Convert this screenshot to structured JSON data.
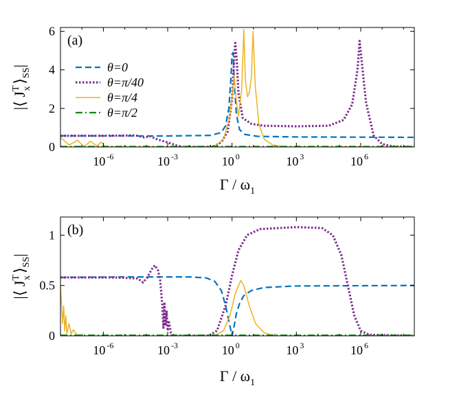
{
  "chart_data": [
    {
      "type": "line",
      "panel_label": "(a)",
      "xscale": "log",
      "xlim_log10": [
        -8,
        8.5
      ],
      "ylim": [
        0,
        6.2
      ],
      "x_ticks": [
        {
          "base": "10",
          "exp": "-6",
          "pos": -6
        },
        {
          "base": "10",
          "exp": "-3",
          "pos": -3
        },
        {
          "base": "10",
          "exp": "0",
          "pos": 0
        },
        {
          "base": "10",
          "exp": "3",
          "pos": 3
        },
        {
          "base": "10",
          "exp": "6",
          "pos": 6
        }
      ],
      "y_ticks": [
        {
          "label": "0",
          "v": 0
        },
        {
          "label": "2",
          "v": 2
        },
        {
          "label": "4",
          "v": 4
        },
        {
          "label": "6",
          "v": 6
        }
      ],
      "xlabel": {
        "main": "Γ / ω",
        "sub": "1"
      },
      "ylabel": {
        "left": "|⟨ J",
        "sup": "T",
        "sub": "x",
        "right": "⟩",
        "sub2": "SS",
        "end": "|"
      },
      "legend": [
        {
          "label": "θ=0",
          "color": "#0072BD",
          "style": "dashed"
        },
        {
          "label": "θ=π/40",
          "color": "#7E2F8E",
          "style": "dotted"
        },
        {
          "label": "θ=π/4",
          "color": "#EDB120",
          "style": "solid"
        },
        {
          "label": "θ=π/2",
          "color": "#0F8A0F",
          "style": "dashdot"
        }
      ],
      "series": [
        {
          "name": "θ=0",
          "color": "#0072BD",
          "dash": "9,5",
          "width": 2.2,
          "points": [
            [
              -8,
              0.58
            ],
            [
              -3,
              0.57
            ],
            [
              -1,
              0.6
            ],
            [
              -0.5,
              0.75
            ],
            [
              -0.3,
              1.1
            ],
            [
              -0.15,
              2.0
            ],
            [
              -0.05,
              3.6
            ],
            [
              0,
              4.8
            ],
            [
              0.05,
              4.9
            ],
            [
              0.1,
              3.5
            ],
            [
              0.2,
              1.7
            ],
            [
              0.35,
              0.9
            ],
            [
              0.6,
              0.65
            ],
            [
              1.2,
              0.55
            ],
            [
              3,
              0.52
            ],
            [
              8.5,
              0.5
            ]
          ]
        },
        {
          "name": "θ=π/40",
          "color": "#7E2F8E",
          "dash": "2.5,2.5",
          "width": 3.2,
          "points": [
            [
              -8,
              0.58
            ],
            [
              -6,
              0.58
            ],
            [
              -4.5,
              0.6
            ],
            [
              -4.1,
              0.5
            ],
            [
              -3.8,
              0.55
            ],
            [
              -3.5,
              0.4
            ],
            [
              -3.2,
              0.3
            ],
            [
              -2.9,
              0.2
            ],
            [
              -2.6,
              0.08
            ],
            [
              -2.3,
              0
            ],
            [
              -1.2,
              0
            ],
            [
              -0.8,
              0.05
            ],
            [
              -0.5,
              0.25
            ],
            [
              -0.2,
              0.8
            ],
            [
              0,
              2.5
            ],
            [
              0.1,
              4.6
            ],
            [
              0.15,
              5.4
            ],
            [
              0.22,
              4.5
            ],
            [
              0.3,
              2.8
            ],
            [
              0.5,
              1.5
            ],
            [
              0.9,
              1.2
            ],
            [
              1.5,
              1.1
            ],
            [
              3,
              1.07
            ],
            [
              4.5,
              1.1
            ],
            [
              5.2,
              1.4
            ],
            [
              5.6,
              2.2
            ],
            [
              5.85,
              4.0
            ],
            [
              5.95,
              5.5
            ],
            [
              6.05,
              4.4
            ],
            [
              6.25,
              2.3
            ],
            [
              6.6,
              0.6
            ],
            [
              7,
              0.15
            ],
            [
              7.5,
              0.03
            ],
            [
              8.5,
              0
            ]
          ]
        },
        {
          "name": "θ=π/4",
          "color": "#EDB120",
          "dash": "",
          "width": 1.5,
          "points": [
            [
              -8,
              0.5
            ],
            [
              -7.6,
              0.1
            ],
            [
              -7.2,
              0.35
            ],
            [
              -6.9,
              0.0
            ],
            [
              -6.6,
              0.3
            ],
            [
              -6.3,
              0.05
            ],
            [
              -6.1,
              0.25
            ],
            [
              -5.9,
              0
            ],
            [
              -1.2,
              0
            ],
            [
              -0.8,
              0.05
            ],
            [
              -0.4,
              0.4
            ],
            [
              -0.1,
              1.6
            ],
            [
              0.02,
              2.8
            ],
            [
              0.1,
              3.7
            ],
            [
              0.2,
              2.4
            ],
            [
              0.3,
              1.6
            ],
            [
              0.45,
              3.0
            ],
            [
              0.55,
              6.1
            ],
            [
              0.62,
              3.5
            ],
            [
              0.72,
              2.6
            ],
            [
              0.8,
              2.8
            ],
            [
              0.9,
              3.6
            ],
            [
              0.98,
              6.0
            ],
            [
              1.08,
              3.2
            ],
            [
              1.25,
              1.2
            ],
            [
              1.5,
              0.4
            ],
            [
              1.9,
              0.1
            ],
            [
              2.5,
              0
            ],
            [
              8.5,
              0
            ]
          ]
        },
        {
          "name": "θ=π/2",
          "color": "#0F8A0F",
          "dash": "10,4,2,4",
          "width": 2.2,
          "points": [
            [
              -8,
              0.02
            ],
            [
              8.5,
              0.02
            ]
          ]
        }
      ]
    },
    {
      "type": "line",
      "panel_label": "(b)",
      "xscale": "log",
      "xlim_log10": [
        -8,
        8.5
      ],
      "ylim": [
        0,
        1.18
      ],
      "x_ticks": [
        {
          "base": "10",
          "exp": "-6",
          "pos": -6
        },
        {
          "base": "10",
          "exp": "-3",
          "pos": -3
        },
        {
          "base": "10",
          "exp": "0",
          "pos": 0
        },
        {
          "base": "10",
          "exp": "3",
          "pos": 3
        },
        {
          "base": "10",
          "exp": "6",
          "pos": 6
        }
      ],
      "y_ticks": [
        {
          "label": "0",
          "v": 0
        },
        {
          "label": "0.5",
          "v": 0.5
        },
        {
          "label": "1",
          "v": 1
        }
      ],
      "xlabel": {
        "main": "Γ / ω",
        "sub": "1"
      },
      "ylabel": {
        "left": "|⟨ J",
        "sup": "T",
        "sub": "x",
        "right": "⟩",
        "sub2": "SS",
        "end": "|"
      },
      "series": [
        {
          "name": "θ=0",
          "color": "#0072BD",
          "dash": "9,5",
          "width": 2.2,
          "points": [
            [
              -8,
              0.58
            ],
            [
              -5,
              0.585
            ],
            [
              -2,
              0.585
            ],
            [
              -1.2,
              0.575
            ],
            [
              -0.8,
              0.54
            ],
            [
              -0.5,
              0.45
            ],
            [
              -0.3,
              0.3
            ],
            [
              -0.15,
              0.15
            ],
            [
              -0.05,
              0.05
            ],
            [
              0,
              0
            ],
            [
              0.1,
              0.1
            ],
            [
              0.2,
              0.22
            ],
            [
              0.35,
              0.32
            ],
            [
              0.55,
              0.4
            ],
            [
              0.9,
              0.45
            ],
            [
              1.5,
              0.48
            ],
            [
              3,
              0.495
            ],
            [
              8.5,
              0.5
            ]
          ]
        },
        {
          "name": "θ=π/40",
          "color": "#7E2F8E",
          "dash": "2.5,2.5",
          "width": 3.2,
          "points": [
            [
              -8,
              0.58
            ],
            [
              -5.5,
              0.58
            ],
            [
              -4.4,
              0.57
            ],
            [
              -4.15,
              0.53
            ],
            [
              -3.95,
              0.58
            ],
            [
              -3.75,
              0.66
            ],
            [
              -3.6,
              0.7
            ],
            [
              -3.45,
              0.65
            ],
            [
              -3.35,
              0.55
            ],
            [
              -3.25,
              0.3
            ],
            [
              -3.2,
              0.08
            ],
            [
              -3.15,
              0.32
            ],
            [
              -3.1,
              0.1
            ],
            [
              -3.05,
              0.25
            ],
            [
              -3.0,
              0.05
            ],
            [
              -2.95,
              0.15
            ],
            [
              -2.85,
              0.03
            ],
            [
              -2.7,
              0
            ],
            [
              -1.1,
              0
            ],
            [
              -0.7,
              0.05
            ],
            [
              -0.3,
              0.3
            ],
            [
              0,
              0.6
            ],
            [
              0.3,
              0.85
            ],
            [
              0.7,
              1.0
            ],
            [
              1.3,
              1.06
            ],
            [
              3,
              1.08
            ],
            [
              4.2,
              1.07
            ],
            [
              4.7,
              1.0
            ],
            [
              5.1,
              0.8
            ],
            [
              5.4,
              0.5
            ],
            [
              5.7,
              0.2
            ],
            [
              6.0,
              0.05
            ],
            [
              6.4,
              0.01
            ],
            [
              8.5,
              0
            ]
          ]
        },
        {
          "name": "θ=π/4",
          "color": "#EDB120",
          "dash": "",
          "width": 1.5,
          "points": [
            [
              -8,
              0.5
            ],
            [
              -7.9,
              0.12
            ],
            [
              -7.85,
              0.3
            ],
            [
              -7.8,
              0.05
            ],
            [
              -7.75,
              0.2
            ],
            [
              -7.7,
              0.02
            ],
            [
              -7.6,
              0.12
            ],
            [
              -7.5,
              0.02
            ],
            [
              -7.4,
              0.06
            ],
            [
              -7.2,
              0
            ],
            [
              -0.8,
              0
            ],
            [
              -0.4,
              0.05
            ],
            [
              -0.1,
              0.2
            ],
            [
              0.15,
              0.42
            ],
            [
              0.4,
              0.55
            ],
            [
              0.55,
              0.5
            ],
            [
              0.8,
              0.3
            ],
            [
              1.1,
              0.12
            ],
            [
              1.5,
              0.03
            ],
            [
              2,
              0
            ],
            [
              8.5,
              0
            ]
          ]
        },
        {
          "name": "θ=π/2",
          "color": "#0F8A0F",
          "dash": "10,4,2,4",
          "width": 2.2,
          "points": [
            [
              -8,
              0.005
            ],
            [
              8.5,
              0.005
            ]
          ]
        }
      ]
    }
  ]
}
